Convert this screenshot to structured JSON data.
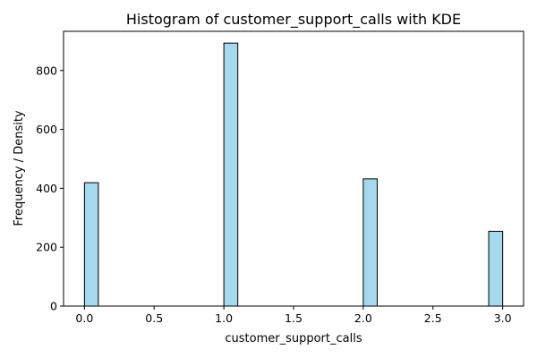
{
  "chart_data": {
    "type": "bar",
    "title": "Histogram of customer_support_calls with KDE",
    "xlabel": "customer_support_calls",
    "ylabel": "Frequency / Density",
    "xlim": [
      -0.15,
      3.15
    ],
    "ylim": [
      0,
      933
    ],
    "xticks": [
      0.0,
      0.5,
      1.0,
      1.5,
      2.0,
      2.5,
      3.0
    ],
    "xtick_labels": [
      "0.0",
      "0.5",
      "1.0",
      "1.5",
      "2.0",
      "2.5",
      "3.0"
    ],
    "yticks": [
      0,
      200,
      400,
      600,
      800
    ],
    "ytick_labels": [
      "0",
      "200",
      "400",
      "600",
      "800"
    ],
    "bin_width": 0.1,
    "bins": [
      {
        "x_start": 0.0,
        "x_end": 0.1,
        "count": 419
      },
      {
        "x_start": 1.0,
        "x_end": 1.1,
        "count": 893
      },
      {
        "x_start": 2.0,
        "x_end": 2.1,
        "count": 432
      },
      {
        "x_start": 2.9,
        "x_end": 3.0,
        "count": 254
      }
    ],
    "bar_color": "#a6d8ee",
    "edge_color": "#000000",
    "grid": false,
    "legend": "none"
  }
}
